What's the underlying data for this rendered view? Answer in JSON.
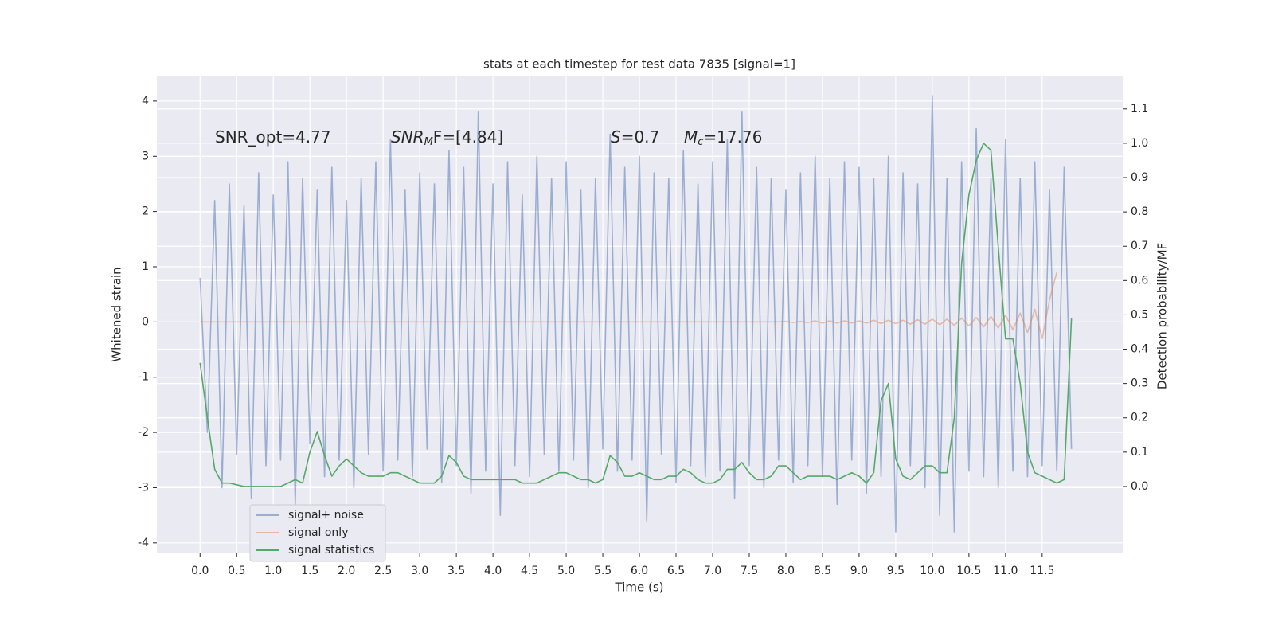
{
  "chart_data": {
    "type": "line",
    "title": "stats at each timestep for test data 7835 [signal=1]",
    "xlabel": "Time (s)",
    "ylabel": "Whitened strain",
    "y2label": "Detection probability/MF",
    "annotations": [
      [
        "SNR_opt=4.77"
      ],
      [
        "SNR",
        "M",
        "F=[4.84]"
      ],
      [
        "S",
        "=0.7"
      ],
      [
        "M",
        "c",
        "=17.76"
      ]
    ],
    "x": [
      0,
      0.1,
      0.2,
      0.3,
      0.4,
      0.5,
      0.6,
      0.7,
      0.8,
      0.9,
      1,
      1.1,
      1.2,
      1.3,
      1.4,
      1.5,
      1.6,
      1.7,
      1.8,
      1.9,
      2,
      2.1,
      2.2,
      2.3,
      2.4,
      2.5,
      2.6,
      2.7,
      2.8,
      2.9,
      3,
      3.1,
      3.2,
      3.3,
      3.4,
      3.5,
      3.6,
      3.7,
      3.8,
      3.9,
      4,
      4.1,
      4.2,
      4.3,
      4.4,
      4.5,
      4.6,
      4.7,
      4.8,
      4.9,
      5,
      5.1,
      5.2,
      5.3,
      5.4,
      5.5,
      5.6,
      5.7,
      5.8,
      5.9,
      6,
      6.1,
      6.2,
      6.3,
      6.4,
      6.5,
      6.6,
      6.7,
      6.8,
      6.9,
      7,
      7.1,
      7.2,
      7.3,
      7.4,
      7.5,
      7.6,
      7.7,
      7.8,
      7.9,
      8,
      8.1,
      8.2,
      8.3,
      8.4,
      8.5,
      8.6,
      8.7,
      8.8,
      8.9,
      9,
      9.1,
      9.2,
      9.3,
      9.4,
      9.5,
      9.6,
      9.7,
      9.8,
      9.9,
      10,
      10.1,
      10.2,
      10.3,
      10.4,
      10.5,
      10.6,
      10.7,
      10.8,
      10.9,
      11,
      11.1,
      11.2,
      11.3,
      11.4,
      11.5,
      11.6,
      11.7,
      11.8,
      11.9
    ],
    "series": [
      {
        "name": "signal+ noise",
        "color": "#4c72b0",
        "opacity": 0.5,
        "axis": "y",
        "values": [
          0.8,
          -2.0,
          2.2,
          -3.0,
          2.5,
          -2.4,
          2.1,
          -3.2,
          2.7,
          -2.6,
          2.3,
          -2.5,
          2.9,
          -3.3,
          2.6,
          -2.2,
          2.4,
          -2.8,
          2.8,
          -2.5,
          2.2,
          -3.0,
          2.6,
          -2.4,
          2.9,
          -2.7,
          3.3,
          -2.5,
          2.4,
          -2.8,
          2.7,
          -2.3,
          2.5,
          -2.9,
          3.1,
          -2.6,
          2.8,
          -3.1,
          3.8,
          -2.7,
          2.5,
          -3.5,
          2.9,
          -2.6,
          2.3,
          -2.8,
          3.0,
          -2.4,
          2.6,
          -2.7,
          2.9,
          -2.5,
          2.4,
          -3.0,
          2.6,
          -2.3,
          3.4,
          -2.7,
          2.8,
          -2.5,
          3.0,
          -3.6,
          2.7,
          -2.4,
          2.6,
          -2.9,
          3.1,
          -2.6,
          2.5,
          -2.8,
          2.9,
          -2.7,
          3.3,
          -3.2,
          3.8,
          -2.6,
          2.8,
          -3.0,
          2.6,
          -2.5,
          2.4,
          -2.9,
          2.7,
          -2.6,
          3.0,
          -2.8,
          2.6,
          -3.3,
          2.9,
          -2.5,
          2.8,
          -3.1,
          2.6,
          -2.8,
          3.0,
          -3.8,
          2.7,
          -2.6,
          2.5,
          -3.0,
          4.1,
          -3.5,
          2.6,
          -3.8,
          2.9,
          -2.7,
          3.5,
          -2.8,
          2.6,
          -3.0,
          3.3,
          -2.7,
          2.6,
          -2.8,
          2.9,
          -2.6,
          2.4,
          -2.7,
          2.8,
          -2.3
        ]
      },
      {
        "name": "signal only",
        "color": "#dd8452",
        "opacity": 0.5,
        "axis": "y",
        "values": [
          0,
          0,
          0,
          0,
          0,
          0,
          0,
          0,
          0,
          0,
          0,
          0,
          0,
          0,
          0,
          0,
          0,
          0,
          0,
          0,
          0,
          0,
          0,
          0,
          0,
          0,
          0,
          0,
          0,
          0,
          0,
          0,
          0,
          0,
          0,
          0,
          0,
          0,
          0,
          0,
          0,
          0,
          0,
          0,
          0,
          0,
          0,
          0,
          0,
          0,
          0,
          0,
          0,
          0,
          0,
          0,
          0,
          0,
          0,
          0,
          0,
          0,
          0,
          0,
          0,
          0,
          0,
          0,
          0,
          0,
          0,
          0,
          0,
          0,
          0,
          0,
          0,
          0,
          0,
          0,
          0.01,
          -0.01,
          0.01,
          -0.01,
          0.02,
          -0.02,
          0.02,
          -0.02,
          0.02,
          -0.02,
          0.02,
          -0.02,
          0.03,
          -0.03,
          0.03,
          -0.03,
          0.03,
          -0.04,
          0.04,
          -0.04,
          0.05,
          -0.05,
          0.05,
          -0.06,
          0.07,
          -0.07,
          0.08,
          -0.09,
          0.1,
          -0.11,
          0.12,
          -0.14,
          0.16,
          -0.19,
          0.23,
          -0.3,
          0.4,
          0.9,
          null,
          null
        ]
      },
      {
        "name": "signal statistics",
        "color": "#55a868",
        "opacity": 1,
        "axis": "y2",
        "values": [
          0.36,
          0.2,
          0.05,
          0.01,
          0.01,
          0.005,
          0,
          0,
          0,
          0,
          0,
          0,
          0.01,
          0.02,
          0.01,
          0.1,
          0.16,
          0.09,
          0.03,
          0.06,
          0.08,
          0.06,
          0.04,
          0.03,
          0.03,
          0.03,
          0.04,
          0.04,
          0.03,
          0.02,
          0.01,
          0.01,
          0.01,
          0.03,
          0.09,
          0.07,
          0.03,
          0.02,
          0.02,
          0.02,
          0.02,
          0.02,
          0.02,
          0.02,
          0.01,
          0.01,
          0.01,
          0.02,
          0.03,
          0.04,
          0.04,
          0.03,
          0.02,
          0.02,
          0.01,
          0.02,
          0.09,
          0.07,
          0.03,
          0.03,
          0.04,
          0.03,
          0.02,
          0.02,
          0.03,
          0.03,
          0.05,
          0.04,
          0.02,
          0.01,
          0.01,
          0.02,
          0.05,
          0.05,
          0.07,
          0.04,
          0.02,
          0.02,
          0.03,
          0.06,
          0.06,
          0.04,
          0.02,
          0.03,
          0.03,
          0.03,
          0.03,
          0.02,
          0.03,
          0.04,
          0.03,
          0.01,
          0.04,
          0.25,
          0.3,
          0.08,
          0.03,
          0.02,
          0.04,
          0.06,
          0.06,
          0.04,
          0.04,
          0.2,
          0.65,
          0.85,
          0.95,
          1.0,
          0.98,
          0.7,
          0.43,
          0.43,
          0.3,
          0.1,
          0.04,
          0.03,
          0.02,
          0.01,
          0.02,
          0.49
        ]
      }
    ],
    "xlim": [
      -0.59,
      12.6
    ],
    "ylim": [
      -4.19,
      4.46
    ],
    "y2lim": [
      -0.195,
      1.197
    ],
    "xticks": [
      {
        "value": 0,
        "label": "0.0"
      },
      0.5,
      {
        "value": 1,
        "label": "1.0"
      },
      1.5,
      {
        "value": 2,
        "label": "2.0"
      },
      2.5,
      {
        "value": 3,
        "label": "3.0"
      },
      3.5,
      {
        "value": 4,
        "label": "4.0"
      },
      4.5,
      {
        "value": 5,
        "label": "5.0"
      },
      5.5,
      {
        "value": 6,
        "label": "6.0"
      },
      6.5,
      {
        "value": 7,
        "label": "7.0"
      },
      7.5,
      {
        "value": 8,
        "label": "8.0"
      },
      8.5,
      {
        "value": 9,
        "label": "9.0"
      },
      9.5,
      {
        "value": 10,
        "label": "10.0"
      },
      10.5,
      {
        "value": 11,
        "label": "11.0"
      },
      11.5
    ],
    "yticks": [
      -4,
      -3,
      -2,
      -1,
      0,
      1,
      2,
      3,
      4
    ],
    "y2ticks": [
      {
        "value": 0,
        "label": "0.0"
      },
      0.1,
      0.2,
      0.3,
      0.4,
      0.5,
      0.6,
      0.7,
      0.8,
      0.9,
      {
        "value": 1,
        "label": "1.0"
      },
      1.1
    ],
    "grid": true,
    "legend": "lower left",
    "background": "#eaeaf2"
  }
}
